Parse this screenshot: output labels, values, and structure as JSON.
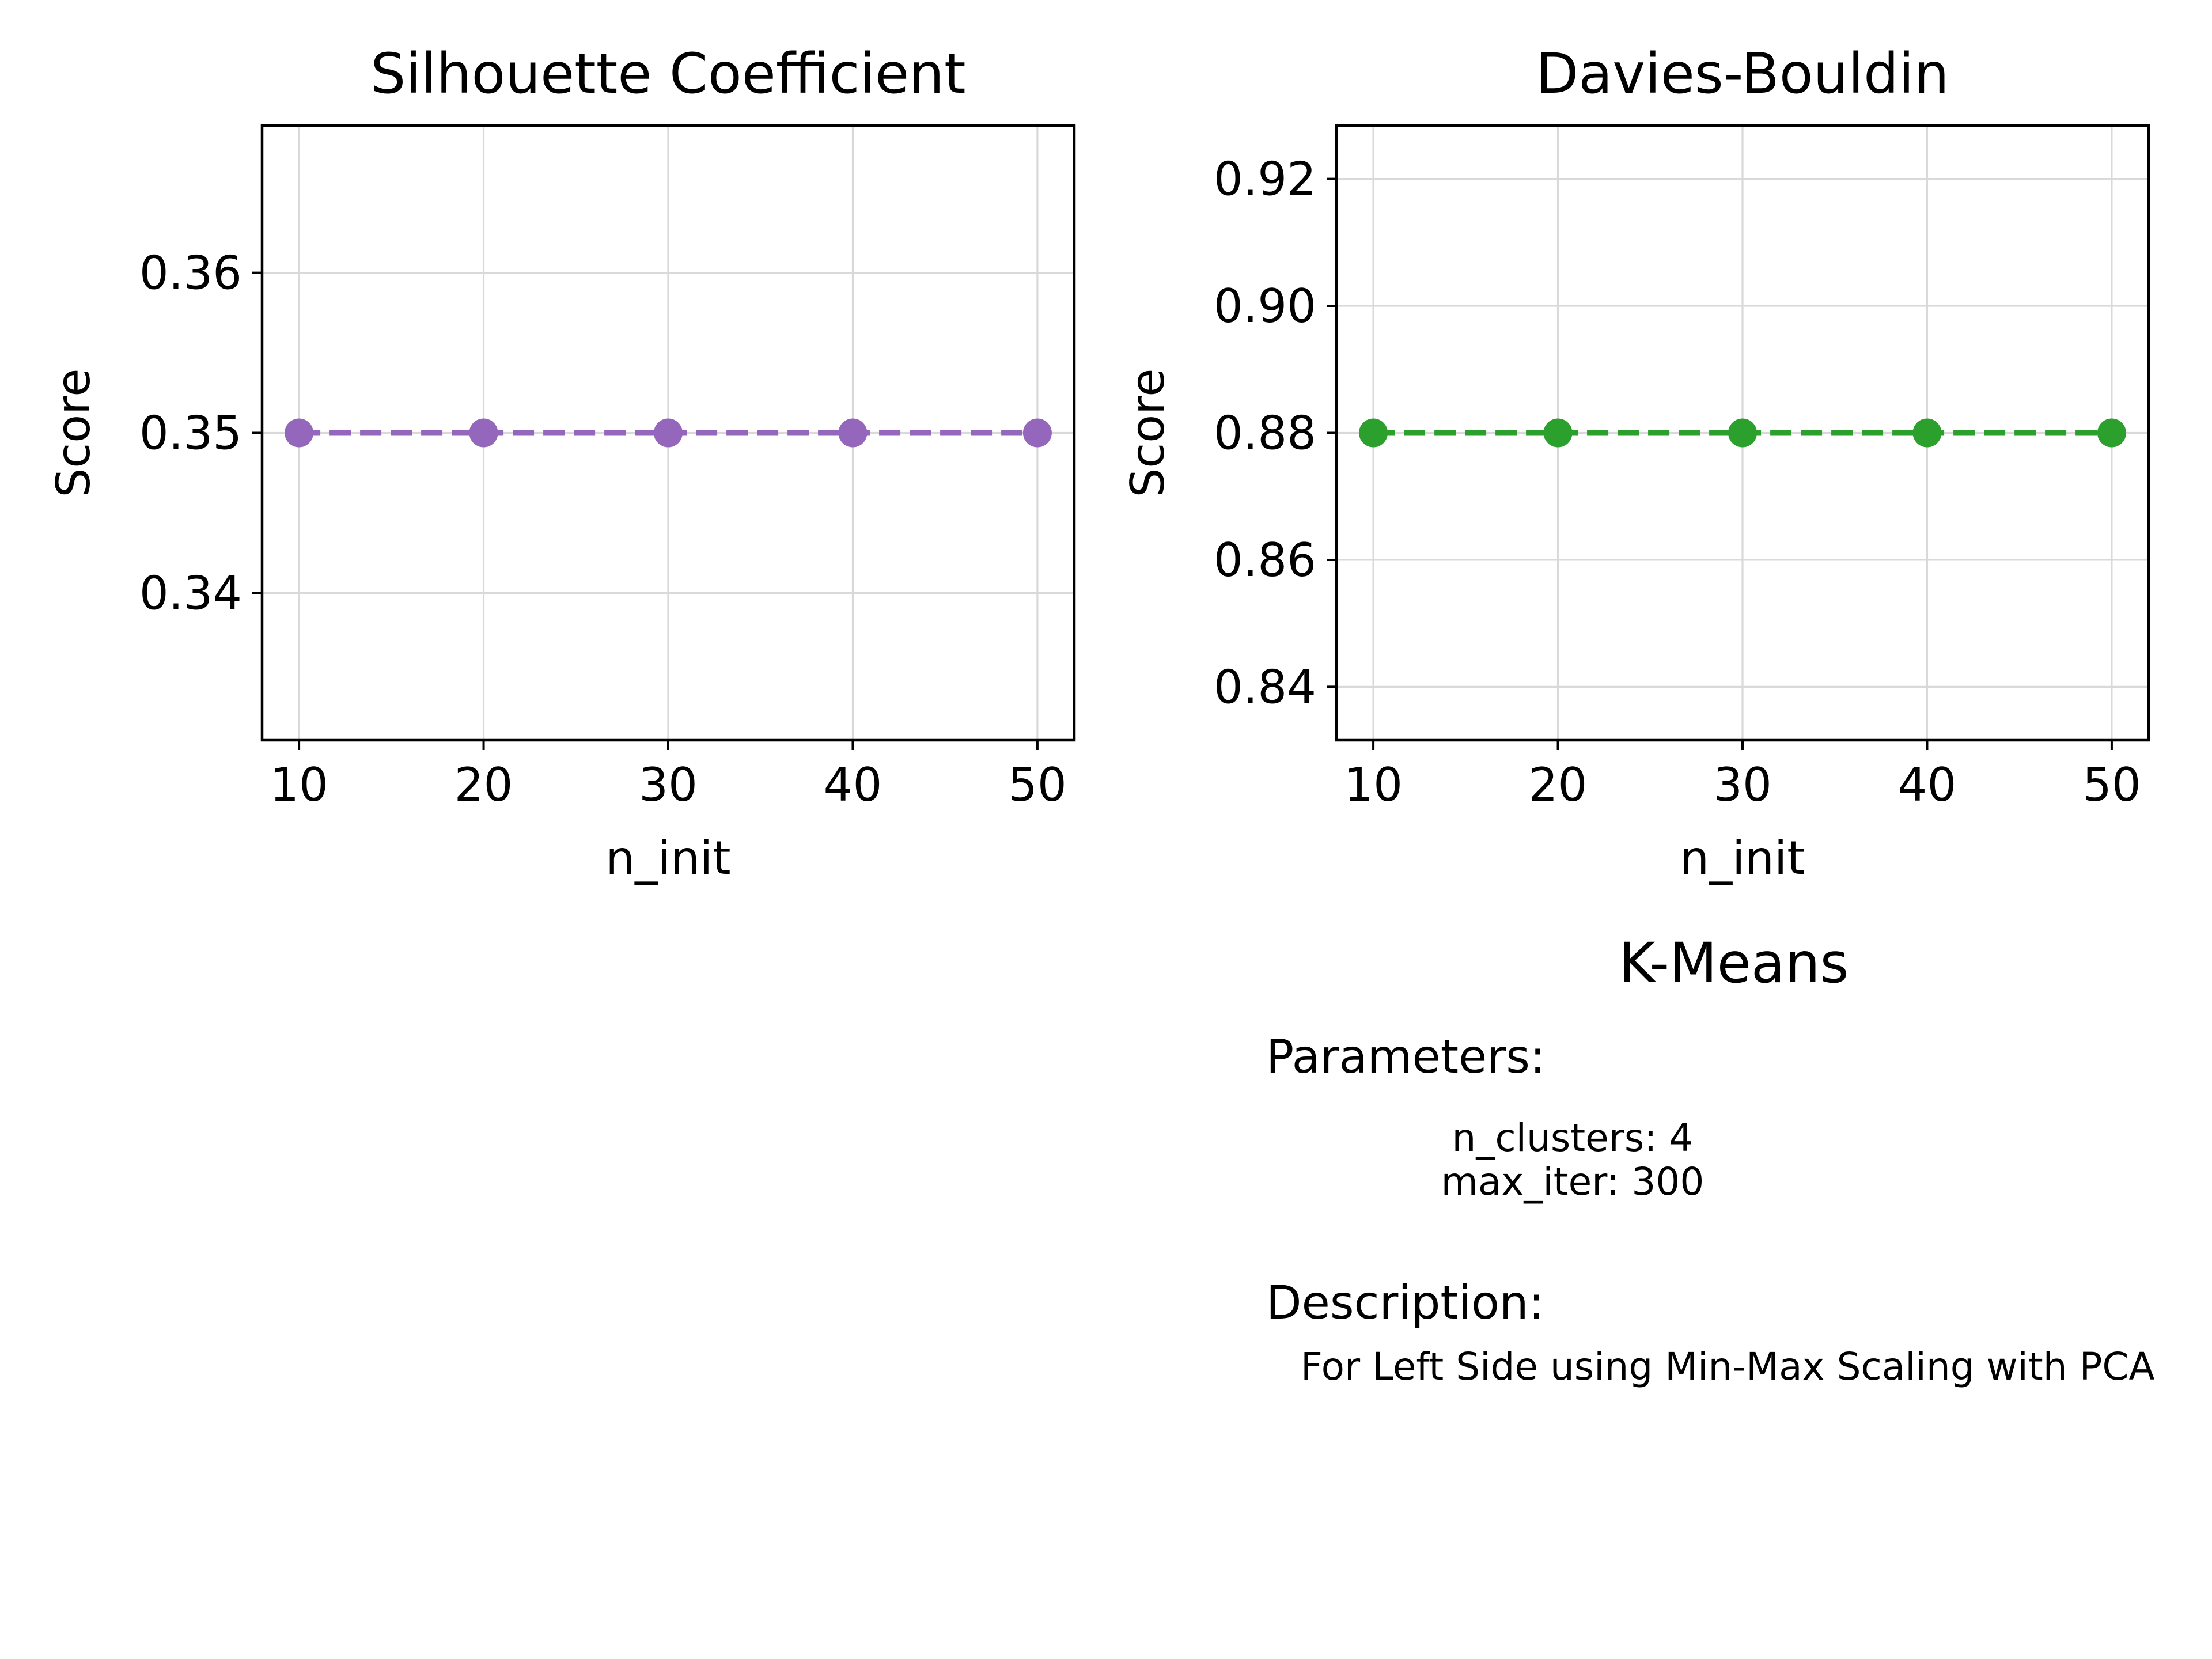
{
  "chart_data": [
    {
      "type": "line",
      "title": "Silhouette Coefficient",
      "xlabel": "n_init",
      "ylabel": "Score",
      "x": [
        10,
        20,
        30,
        40,
        50
      ],
      "series": [
        {
          "values": [
            0.35,
            0.35,
            0.35,
            0.35,
            0.35
          ]
        }
      ],
      "xticks": [
        "10",
        "20",
        "30",
        "40",
        "50"
      ],
      "yticks": [
        "0.34",
        "0.35",
        "0.36"
      ],
      "xlim": [
        8,
        52
      ],
      "ylim": [
        0.3308,
        0.3692
      ],
      "color": "#9467bd",
      "line_style": "dashed",
      "marker": "circle",
      "grid": true,
      "legend": "none"
    },
    {
      "type": "line",
      "title": "Davies-Bouldin",
      "xlabel": "n_init",
      "ylabel": "Score",
      "x": [
        10,
        20,
        30,
        40,
        50
      ],
      "series": [
        {
          "values": [
            0.88,
            0.88,
            0.88,
            0.88,
            0.88
          ]
        }
      ],
      "xticks": [
        "10",
        "20",
        "30",
        "40",
        "50"
      ],
      "yticks": [
        "0.84",
        "0.86",
        "0.88",
        "0.90",
        "0.92"
      ],
      "xlim": [
        8,
        52
      ],
      "ylim": [
        0.8316,
        0.9284
      ],
      "color": "#2ca02c",
      "line_style": "dashed",
      "marker": "circle",
      "grid": true,
      "legend": "none"
    }
  ],
  "info": {
    "title": "K-Means",
    "parameters_label": "Parameters:",
    "parameters": [
      "n_clusters: 4",
      "max_iter: 300"
    ],
    "description_label": "Description:",
    "description": "For Left Side using Min-Max Scaling with PCA"
  }
}
